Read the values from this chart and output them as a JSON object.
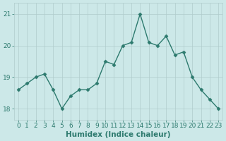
{
  "x": [
    0,
    1,
    2,
    3,
    4,
    5,
    6,
    7,
    8,
    9,
    10,
    11,
    12,
    13,
    14,
    15,
    16,
    17,
    18,
    19,
    20,
    21,
    22,
    23
  ],
  "y": [
    18.6,
    18.8,
    19.0,
    19.1,
    18.6,
    18.0,
    18.4,
    18.6,
    18.6,
    18.8,
    19.5,
    19.4,
    20.0,
    20.1,
    21.0,
    20.1,
    20.0,
    20.3,
    19.7,
    19.8,
    19.0,
    18.6,
    18.3,
    18.0
  ],
  "xlabel": "Humidex (Indice chaleur)",
  "xlim": [
    -0.5,
    23.5
  ],
  "ylim": [
    17.65,
    21.35
  ],
  "yticks": [
    18,
    19,
    20,
    21
  ],
  "xticks": [
    0,
    1,
    2,
    3,
    4,
    5,
    6,
    7,
    8,
    9,
    10,
    11,
    12,
    13,
    14,
    15,
    16,
    17,
    18,
    19,
    20,
    21,
    22,
    23
  ],
  "line_color": "#2d7a6e",
  "marker": "D",
  "marker_size": 2.5,
  "bg_color": "#cce8e8",
  "grid_color": "#b0cccc",
  "text_color": "#2d7a6e",
  "axis_fontsize": 7.5,
  "tick_fontsize": 6.5,
  "line_width": 1.0
}
